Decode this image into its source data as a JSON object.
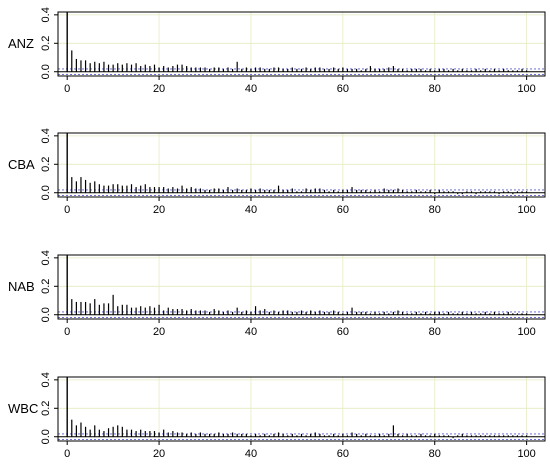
{
  "chart_data": {
    "type": "bar",
    "x_ticks": [
      0,
      20,
      40,
      60,
      80,
      100
    ],
    "y_ticks": [
      "0.0",
      "0.2",
      "0.4"
    ],
    "xlim": [
      -2,
      104
    ],
    "ylim": [
      -0.03,
      0.42
    ],
    "grid": true,
    "confidence_band": 0.02,
    "colors": {
      "bars": "#000000",
      "grid": "#e6ecc0",
      "band": "#5a5ad2",
      "zero_line": "#000000"
    },
    "panels": [
      {
        "label": "ANZ",
        "values": [
          0.45,
          0.15,
          0.09,
          0.08,
          0.08,
          0.06,
          0.07,
          0.06,
          0.07,
          0.05,
          0.05,
          0.06,
          0.05,
          0.06,
          0.05,
          0.06,
          0.04,
          0.05,
          0.04,
          0.05,
          0.03,
          0.04,
          0.03,
          0.04,
          0.05,
          0.05,
          0.04,
          0.03,
          0.03,
          0.03,
          0.03,
          0.02,
          0.03,
          0.03,
          0.02,
          0.03,
          0.02,
          0.07,
          0.02,
          0.03,
          0.02,
          0.03,
          0.03,
          0.02,
          0.02,
          0.03,
          0.03,
          0.02,
          0.02,
          0.03,
          0.02,
          0.02,
          0.03,
          0.02,
          0.03,
          0.03,
          0.02,
          0.02,
          0.03,
          0.02,
          0.03,
          0.02,
          0.02,
          0.02,
          0.01,
          0.02,
          0.04,
          0.02,
          0.02,
          0.02,
          0.03,
          0.04,
          0.02,
          0.02,
          0.01,
          0.02,
          0.02,
          0.02,
          0.01,
          0.02,
          0.01,
          0.02,
          0.02,
          0.01,
          0.02,
          0.01,
          0.02,
          0.01,
          0.01,
          0.02,
          0.01,
          0.02,
          0.01,
          0.02,
          0.01,
          0.02,
          0.01,
          0.01,
          0.01,
          0.02,
          0.01
        ]
      },
      {
        "label": "CBA",
        "values": [
          0.45,
          0.11,
          0.08,
          0.11,
          0.09,
          0.07,
          0.08,
          0.06,
          0.05,
          0.05,
          0.06,
          0.06,
          0.05,
          0.05,
          0.06,
          0.04,
          0.05,
          0.06,
          0.04,
          0.04,
          0.04,
          0.04,
          0.03,
          0.04,
          0.03,
          0.05,
          0.03,
          0.04,
          0.03,
          0.03,
          0.02,
          0.02,
          0.03,
          0.03,
          0.02,
          0.04,
          0.02,
          0.03,
          0.02,
          0.02,
          0.03,
          0.02,
          0.03,
          0.02,
          0.02,
          0.02,
          0.05,
          0.02,
          0.02,
          0.03,
          0.01,
          0.01,
          0.03,
          0.02,
          0.03,
          0.03,
          0.02,
          0.01,
          0.02,
          0.01,
          0.02,
          0.02,
          0.04,
          0.02,
          0.02,
          0.02,
          0.01,
          0.02,
          0.01,
          0.03,
          0.02,
          0.02,
          0.03,
          0.02,
          0.01,
          0.01,
          0.02,
          0.01,
          0.01,
          0.02,
          -0.01,
          0.02,
          0.01,
          0.01,
          0.01,
          -0.01,
          -0.01,
          0.01,
          0.01,
          -0.01,
          0.01,
          0.01,
          0.01,
          0.01,
          -0.01,
          0.01,
          0.01,
          -0.01,
          0.01,
          0.01,
          0.01
        ]
      },
      {
        "label": "NAB",
        "values": [
          0.45,
          0.11,
          0.09,
          0.09,
          0.09,
          0.08,
          0.11,
          0.07,
          0.08,
          0.08,
          0.14,
          0.06,
          0.07,
          0.07,
          0.05,
          0.05,
          0.06,
          0.05,
          0.06,
          0.05,
          0.07,
          0.03,
          0.05,
          0.04,
          0.04,
          0.04,
          0.03,
          0.04,
          0.03,
          0.03,
          0.03,
          0.02,
          0.04,
          0.03,
          0.02,
          0.03,
          0.02,
          0.05,
          0.02,
          0.03,
          0.02,
          0.06,
          0.03,
          0.04,
          0.02,
          0.03,
          0.02,
          0.03,
          0.03,
          0.02,
          0.02,
          0.03,
          0.02,
          0.03,
          0.02,
          0.03,
          0.02,
          0.02,
          0.03,
          0.02,
          0.01,
          0.02,
          0.05,
          0.02,
          0.02,
          0.02,
          0.01,
          0.02,
          0.01,
          0.02,
          0.01,
          0.02,
          0.03,
          0.02,
          0.01,
          0.01,
          0.02,
          0.01,
          0.02,
          0.01,
          0.02,
          0.02,
          0.01,
          0.02,
          0.01,
          0.01,
          0.02,
          0.01,
          0.02,
          0.01,
          0.01,
          0.02,
          0.01,
          0.02,
          0.01,
          0.01,
          0.02,
          0.01,
          0.01,
          0.01,
          0.01
        ]
      },
      {
        "label": "WBC",
        "values": [
          0.45,
          0.12,
          0.08,
          0.1,
          0.07,
          0.05,
          0.08,
          0.05,
          0.04,
          0.06,
          0.07,
          0.08,
          0.07,
          0.05,
          0.05,
          0.04,
          0.05,
          0.04,
          0.04,
          0.04,
          0.03,
          0.05,
          0.03,
          0.04,
          0.03,
          0.03,
          0.02,
          0.03,
          0.02,
          0.03,
          0.02,
          0.02,
          0.02,
          0.03,
          0.02,
          0.02,
          0.03,
          0.02,
          0.02,
          0.02,
          0.01,
          0.02,
          0.01,
          0.02,
          0.01,
          0.02,
          0.03,
          0.02,
          0.01,
          0.02,
          0.01,
          0.02,
          0.01,
          0.02,
          0.03,
          0.02,
          0.01,
          0.01,
          0.02,
          0.01,
          0.02,
          0.01,
          0.03,
          0.02,
          0.01,
          0.02,
          0.01,
          0.01,
          0.02,
          0.01,
          0.02,
          0.08,
          0.02,
          0.01,
          0.02,
          0.01,
          0.01,
          0.02,
          0.01,
          0.01,
          0.02,
          0.01,
          0.01,
          0.01,
          -0.01,
          0.01,
          0.02,
          0.01,
          0.01,
          0.01,
          0.01,
          0.01,
          0.01,
          0.01,
          0.01,
          0.01,
          0.01,
          0.01,
          0.01,
          0.01,
          0.01
        ]
      }
    ]
  }
}
